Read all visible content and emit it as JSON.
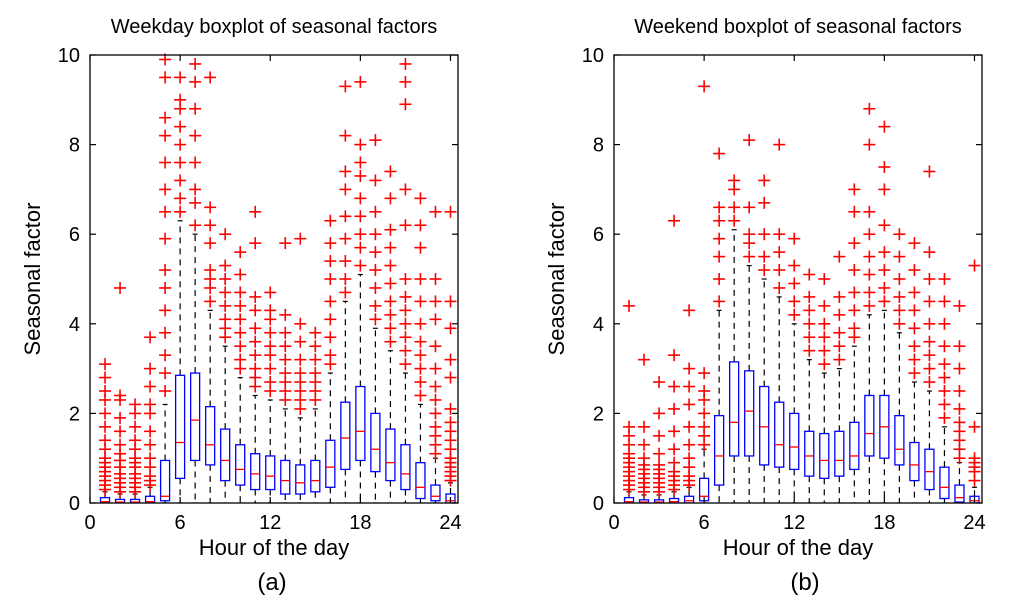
{
  "chart_data": [
    {
      "type": "boxplot",
      "panel": "(a)",
      "title": "Weekday boxplot of seasonal factors",
      "xlabel": "Hour of the day",
      "ylabel": "Seasonal factor",
      "xlim": [
        0,
        24.5
      ],
      "ylim": [
        0,
        10
      ],
      "xticks": [
        0,
        6,
        12,
        18,
        24
      ],
      "yticks": [
        0,
        2,
        4,
        6,
        8,
        10
      ],
      "box_color": "#0000ff",
      "median_color": "#ff0000",
      "outlier_color": "#ff0000",
      "whisker_color": "#000000",
      "boxes": [
        {
          "hour": 1,
          "q1": 0.0,
          "median": 0.03,
          "q3": 0.12,
          "whisker_low": 0.0,
          "whisker_high": 0.25,
          "outliers": [
            0.3,
            0.4,
            0.5,
            0.6,
            0.7,
            0.8,
            0.9,
            1.0,
            1.2,
            1.4,
            1.7,
            2.0,
            2.3,
            2.5,
            2.8,
            3.1
          ]
        },
        {
          "hour": 2,
          "q1": 0.0,
          "median": 0.02,
          "q3": 0.08,
          "whisker_low": 0.0,
          "whisker_high": 0.2,
          "outliers": [
            0.25,
            0.35,
            0.45,
            0.55,
            0.65,
            0.8,
            0.95,
            1.1,
            1.3,
            1.6,
            1.9,
            2.3,
            2.4,
            4.8
          ]
        },
        {
          "hour": 3,
          "q1": 0.0,
          "median": 0.02,
          "q3": 0.08,
          "whisker_low": 0.0,
          "whisker_high": 0.2,
          "outliers": [
            0.25,
            0.35,
            0.45,
            0.55,
            0.65,
            0.8,
            0.9,
            1.0,
            1.2,
            1.4,
            1.7,
            2.0,
            2.2
          ]
        },
        {
          "hour": 4,
          "q1": 0.0,
          "median": 0.03,
          "q3": 0.15,
          "whisker_low": 0.0,
          "whisker_high": 0.35,
          "outliers": [
            0.4,
            0.5,
            0.6,
            0.8,
            1.0,
            1.3,
            1.6,
            2.0,
            2.2,
            2.6,
            3.0,
            3.7
          ]
        },
        {
          "hour": 5,
          "q1": 0.05,
          "median": 0.15,
          "q3": 0.95,
          "whisker_low": 0.0,
          "whisker_high": 2.2,
          "outliers": [
            2.5,
            2.9,
            3.3,
            3.8,
            4.3,
            4.8,
            5.2,
            5.9,
            6.5,
            7.0,
            7.6,
            8.2,
            8.6,
            9.5,
            9.9
          ]
        },
        {
          "hour": 6,
          "q1": 0.55,
          "median": 1.35,
          "q3": 2.85,
          "whisker_low": 0.0,
          "whisker_high": 6.3,
          "outliers": [
            6.5,
            6.8,
            7.2,
            7.6,
            8.0,
            8.4,
            8.8,
            9.0,
            9.5
          ]
        },
        {
          "hour": 7,
          "q1": 0.95,
          "median": 1.85,
          "q3": 2.9,
          "whisker_low": 0.0,
          "whisker_high": 6.0,
          "outliers": [
            6.2,
            6.7,
            7.0,
            7.6,
            8.2,
            8.8,
            9.4,
            9.8
          ]
        },
        {
          "hour": 8,
          "q1": 0.85,
          "median": 1.3,
          "q3": 2.15,
          "whisker_low": 0.0,
          "whisker_high": 4.3,
          "outliers": [
            4.5,
            4.8,
            5.0,
            5.2,
            5.8,
            6.2,
            6.6,
            9.5
          ]
        },
        {
          "hour": 9,
          "q1": 0.5,
          "median": 0.95,
          "q3": 1.65,
          "whisker_low": 0.0,
          "whisker_high": 3.5,
          "outliers": [
            3.7,
            3.9,
            4.1,
            4.4,
            4.7,
            5.0,
            5.3,
            6.0
          ]
        },
        {
          "hour": 10,
          "q1": 0.4,
          "median": 0.75,
          "q3": 1.3,
          "whisker_low": 0.0,
          "whisker_high": 2.8,
          "outliers": [
            3.0,
            3.2,
            3.5,
            3.8,
            4.1,
            4.4,
            4.7,
            5.1,
            5.6
          ]
        },
        {
          "hour": 11,
          "q1": 0.3,
          "median": 0.65,
          "q3": 1.1,
          "whisker_low": 0.0,
          "whisker_high": 2.4,
          "outliers": [
            2.6,
            2.8,
            3.0,
            3.3,
            3.6,
            3.9,
            4.3,
            4.6,
            5.8,
            6.5
          ]
        },
        {
          "hour": 12,
          "q1": 0.3,
          "median": 0.6,
          "q3": 1.05,
          "whisker_low": 0.0,
          "whisker_high": 2.3,
          "outliers": [
            2.5,
            2.7,
            3.0,
            3.3,
            3.5,
            3.8,
            4.1,
            4.3,
            4.7
          ]
        },
        {
          "hour": 13,
          "q1": 0.2,
          "median": 0.5,
          "q3": 0.95,
          "whisker_low": 0.0,
          "whisker_high": 2.1,
          "outliers": [
            2.3,
            2.5,
            2.7,
            2.9,
            3.2,
            3.5,
            3.8,
            4.2,
            5.8
          ]
        },
        {
          "hour": 14,
          "q1": 0.2,
          "median": 0.45,
          "q3": 0.85,
          "whisker_low": 0.0,
          "whisker_high": 1.9,
          "outliers": [
            2.1,
            2.3,
            2.5,
            2.7,
            2.9,
            3.2,
            3.6,
            4.0,
            5.9
          ]
        },
        {
          "hour": 15,
          "q1": 0.25,
          "median": 0.5,
          "q3": 0.95,
          "whisker_low": 0.0,
          "whisker_high": 2.1,
          "outliers": [
            2.3,
            2.5,
            2.7,
            2.9,
            3.2,
            3.5,
            3.8
          ]
        },
        {
          "hour": 16,
          "q1": 0.35,
          "median": 0.8,
          "q3": 1.4,
          "whisker_low": 0.0,
          "whisker_high": 2.9,
          "outliers": [
            3.1,
            3.3,
            3.7,
            4.1,
            4.5,
            5.0,
            5.4,
            5.8,
            6.3
          ]
        },
        {
          "hour": 17,
          "q1": 0.75,
          "median": 1.45,
          "q3": 2.25,
          "whisker_low": 0.0,
          "whisker_high": 4.5,
          "outliers": [
            4.7,
            5.0,
            5.4,
            5.9,
            6.4,
            7.0,
            7.4,
            8.2,
            9.3
          ]
        },
        {
          "hour": 18,
          "q1": 0.95,
          "median": 1.6,
          "q3": 2.6,
          "whisker_low": 0.0,
          "whisker_high": 5.1,
          "outliers": [
            5.3,
            5.7,
            6.0,
            6.4,
            6.8,
            7.3,
            7.6,
            8.0,
            9.4
          ]
        },
        {
          "hour": 19,
          "q1": 0.7,
          "median": 1.2,
          "q3": 2.0,
          "whisker_low": 0.0,
          "whisker_high": 3.9,
          "outliers": [
            4.1,
            4.4,
            4.8,
            5.2,
            5.6,
            6.0,
            6.5,
            7.2,
            8.1
          ]
        },
        {
          "hour": 20,
          "q1": 0.5,
          "median": 0.9,
          "q3": 1.65,
          "whisker_low": 0.0,
          "whisker_high": 3.4,
          "outliers": [
            3.6,
            3.9,
            4.2,
            4.5,
            4.9,
            5.3,
            5.7,
            6.1,
            6.8,
            7.4
          ]
        },
        {
          "hour": 21,
          "q1": 0.3,
          "median": 0.65,
          "q3": 1.3,
          "whisker_low": 0.0,
          "whisker_high": 2.9,
          "outliers": [
            3.1,
            3.4,
            3.7,
            4.0,
            4.3,
            4.6,
            5.0,
            6.2,
            7.0,
            8.9,
            9.4,
            9.8
          ]
        },
        {
          "hour": 22,
          "q1": 0.1,
          "median": 0.35,
          "q3": 0.9,
          "whisker_low": 0.0,
          "whisker_high": 2.2,
          "outliers": [
            2.4,
            2.7,
            3.0,
            3.3,
            3.6,
            4.0,
            4.5,
            5.0,
            5.7,
            6.2,
            6.8
          ]
        },
        {
          "hour": 23,
          "q1": 0.05,
          "median": 0.15,
          "q3": 0.4,
          "whisker_low": 0.0,
          "whisker_high": 1.0,
          "outliers": [
            1.1,
            1.3,
            1.5,
            1.7,
            2.0,
            2.3,
            2.6,
            3.0,
            3.5,
            4.1,
            4.5,
            5.0,
            6.5
          ]
        },
        {
          "hour": 24,
          "q1": 0.0,
          "median": 0.05,
          "q3": 0.2,
          "whisker_low": 0.0,
          "whisker_high": 0.45,
          "outliers": [
            0.5,
            0.6,
            0.7,
            0.8,
            0.9,
            1.0,
            1.2,
            1.4,
            1.6,
            1.8,
            2.1,
            2.8,
            3.2,
            3.9,
            4.5,
            6.5
          ]
        }
      ]
    },
    {
      "type": "boxplot",
      "panel": "(b)",
      "title": "Weekend boxplot of seasonal factors",
      "xlabel": "Hour of the day",
      "ylabel": "Seasonal factor",
      "xlim": [
        0,
        24.5
      ],
      "ylim": [
        0,
        10
      ],
      "xticks": [
        0,
        6,
        12,
        18,
        24
      ],
      "yticks": [
        0,
        2,
        4,
        6,
        8,
        10
      ],
      "box_color": "#0000ff",
      "median_color": "#ff0000",
      "outlier_color": "#ff0000",
      "whisker_color": "#000000",
      "boxes": [
        {
          "hour": 1,
          "q1": 0.0,
          "median": 0.03,
          "q3": 0.12,
          "whisker_low": 0.0,
          "whisker_high": 0.25,
          "outliers": [
            0.3,
            0.4,
            0.5,
            0.6,
            0.7,
            0.8,
            0.9,
            1.0,
            1.1,
            1.3,
            1.5,
            1.7,
            4.4
          ]
        },
        {
          "hour": 2,
          "q1": 0.0,
          "median": 0.02,
          "q3": 0.07,
          "whisker_low": 0.0,
          "whisker_high": 0.18,
          "outliers": [
            0.25,
            0.35,
            0.45,
            0.55,
            0.65,
            0.75,
            0.85,
            1.0,
            1.3,
            1.7,
            3.2
          ]
        },
        {
          "hour": 3,
          "q1": 0.0,
          "median": 0.02,
          "q3": 0.07,
          "whisker_low": 0.0,
          "whisker_high": 0.18,
          "outliers": [
            0.25,
            0.35,
            0.45,
            0.55,
            0.65,
            0.75,
            0.85,
            1.1,
            1.5,
            2.0,
            2.7
          ]
        },
        {
          "hour": 4,
          "q1": 0.0,
          "median": 0.03,
          "q3": 0.1,
          "whisker_low": 0.0,
          "whisker_high": 0.25,
          "outliers": [
            0.3,
            0.4,
            0.5,
            0.6,
            0.7,
            0.9,
            1.2,
            1.6,
            2.1,
            2.6,
            3.3,
            6.3
          ]
        },
        {
          "hour": 5,
          "q1": 0.0,
          "median": 0.05,
          "q3": 0.15,
          "whisker_low": 0.0,
          "whisker_high": 0.35,
          "outliers": [
            0.4,
            0.5,
            0.6,
            0.8,
            1.0,
            1.3,
            1.7,
            2.2,
            2.6,
            3.0,
            4.3
          ]
        },
        {
          "hour": 6,
          "q1": 0.05,
          "median": 0.15,
          "q3": 0.55,
          "whisker_low": 0.0,
          "whisker_high": 1.2,
          "outliers": [
            1.3,
            1.5,
            1.7,
            2.0,
            2.3,
            2.5,
            2.9,
            9.3
          ]
        },
        {
          "hour": 7,
          "q1": 0.4,
          "median": 1.05,
          "q3": 1.95,
          "whisker_low": 0.0,
          "whisker_high": 4.3,
          "outliers": [
            4.5,
            5.0,
            5.5,
            5.9,
            6.3,
            6.6,
            7.8
          ]
        },
        {
          "hour": 8,
          "q1": 1.05,
          "median": 1.8,
          "q3": 3.15,
          "whisker_low": 0.0,
          "whisker_high": 6.1,
          "outliers": [
            6.3,
            6.6,
            7.0,
            7.2
          ]
        },
        {
          "hour": 9,
          "q1": 1.05,
          "median": 2.05,
          "q3": 2.95,
          "whisker_low": 0.0,
          "whisker_high": 5.3,
          "outliers": [
            5.5,
            5.8,
            6.0,
            6.6,
            8.1
          ]
        },
        {
          "hour": 10,
          "q1": 0.85,
          "median": 1.7,
          "q3": 2.6,
          "whisker_low": 0.0,
          "whisker_high": 5.0,
          "outliers": [
            5.2,
            5.5,
            6.0,
            6.7,
            7.2
          ]
        },
        {
          "hour": 11,
          "q1": 0.8,
          "median": 1.3,
          "q3": 2.25,
          "whisker_low": 0.0,
          "whisker_high": 4.6,
          "outliers": [
            4.8,
            5.2,
            5.6,
            6.0,
            8.0
          ]
        },
        {
          "hour": 12,
          "q1": 0.75,
          "median": 1.25,
          "q3": 2.0,
          "whisker_low": 0.0,
          "whisker_high": 4.0,
          "outliers": [
            4.2,
            4.5,
            4.9,
            5.3,
            5.9
          ]
        },
        {
          "hour": 13,
          "q1": 0.6,
          "median": 1.05,
          "q3": 1.6,
          "whisker_low": 0.0,
          "whisker_high": 3.2,
          "outliers": [
            3.4,
            3.7,
            4.0,
            4.3,
            4.6,
            5.1
          ]
        },
        {
          "hour": 14,
          "q1": 0.55,
          "median": 0.95,
          "q3": 1.55,
          "whisker_low": 0.0,
          "whisker_high": 2.9,
          "outliers": [
            3.1,
            3.4,
            3.7,
            4.0,
            4.4,
            5.0
          ]
        },
        {
          "hour": 15,
          "q1": 0.6,
          "median": 0.95,
          "q3": 1.6,
          "whisker_low": 0.0,
          "whisker_high": 3.0,
          "outliers": [
            3.2,
            3.5,
            3.8,
            4.2,
            4.6,
            5.5
          ]
        },
        {
          "hour": 16,
          "q1": 0.75,
          "median": 1.05,
          "q3": 1.8,
          "whisker_low": 0.0,
          "whisker_high": 3.5,
          "outliers": [
            3.7,
            3.9,
            4.3,
            4.7,
            5.2,
            5.8,
            6.5,
            7.0
          ]
        },
        {
          "hour": 17,
          "q1": 1.05,
          "median": 1.55,
          "q3": 2.4,
          "whisker_low": 0.0,
          "whisker_high": 4.2,
          "outliers": [
            4.4,
            4.7,
            5.1,
            5.5,
            6.0,
            6.5,
            8.0,
            8.8
          ]
        },
        {
          "hour": 18,
          "q1": 1.0,
          "median": 1.7,
          "q3": 2.4,
          "whisker_low": 0.0,
          "whisker_high": 4.3,
          "outliers": [
            4.5,
            4.8,
            5.2,
            5.6,
            6.2,
            7.0,
            7.5,
            8.4
          ]
        },
        {
          "hour": 19,
          "q1": 0.85,
          "median": 1.2,
          "q3": 1.95,
          "whisker_low": 0.0,
          "whisker_high": 3.8,
          "outliers": [
            4.0,
            4.3,
            4.6,
            5.0,
            5.5,
            6.0
          ]
        },
        {
          "hour": 20,
          "q1": 0.5,
          "median": 0.85,
          "q3": 1.35,
          "whisker_low": 0.0,
          "whisker_high": 2.7,
          "outliers": [
            2.9,
            3.2,
            3.5,
            3.9,
            4.3,
            4.7,
            5.2,
            5.8
          ]
        },
        {
          "hour": 21,
          "q1": 0.3,
          "median": 0.7,
          "q3": 1.2,
          "whisker_low": 0.0,
          "whisker_high": 2.5,
          "outliers": [
            2.7,
            3.0,
            3.3,
            3.6,
            4.0,
            4.5,
            5.0,
            5.6,
            7.4
          ]
        },
        {
          "hour": 22,
          "q1": 0.1,
          "median": 0.35,
          "q3": 0.8,
          "whisker_low": 0.0,
          "whisker_high": 1.7,
          "outliers": [
            1.9,
            2.2,
            2.5,
            2.8,
            3.1,
            3.5,
            4.0,
            4.5,
            5.0
          ]
        },
        {
          "hour": 23,
          "q1": 0.02,
          "median": 0.12,
          "q3": 0.4,
          "whisker_low": 0.0,
          "whisker_high": 0.9,
          "outliers": [
            1.0,
            1.2,
            1.4,
            1.6,
            1.8,
            2.1,
            2.5,
            3.0,
            3.5,
            4.4
          ]
        },
        {
          "hour": 24,
          "q1": 0.0,
          "median": 0.05,
          "q3": 0.15,
          "whisker_low": 0.0,
          "whisker_high": 0.35,
          "outliers": [
            0.5,
            0.7,
            0.8,
            0.9,
            1.0,
            1.7,
            5.3
          ]
        }
      ]
    }
  ],
  "captions": [
    "(a)",
    "(b)"
  ]
}
